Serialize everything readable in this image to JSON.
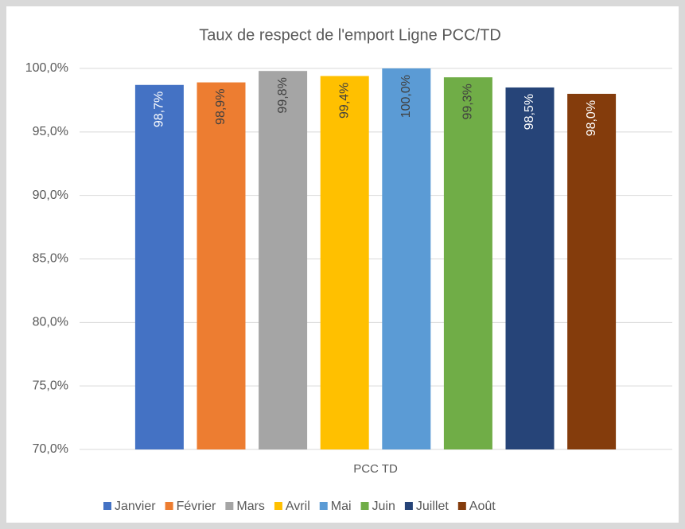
{
  "chart_data": {
    "type": "bar",
    "title": "Taux de respect de l'emport Ligne PCC/TD",
    "categories": [
      "PCC TD"
    ],
    "series": [
      {
        "name": "Janvier",
        "color": "#4472c4",
        "values": [
          98.7
        ],
        "value_labels": [
          "98,7%"
        ]
      },
      {
        "name": "Février",
        "color": "#ed7d31",
        "values": [
          98.9
        ],
        "value_labels": [
          "98,9%"
        ]
      },
      {
        "name": "Mars",
        "color": "#a5a5a5",
        "values": [
          99.8
        ],
        "value_labels": [
          "99,8%"
        ]
      },
      {
        "name": "Avril",
        "color": "#ffc000",
        "values": [
          99.4
        ],
        "value_labels": [
          "99,4%"
        ]
      },
      {
        "name": "Mai",
        "color": "#5b9bd5",
        "values": [
          100.0
        ],
        "value_labels": [
          "100,0%"
        ]
      },
      {
        "name": "Juin",
        "color": "#70ad47",
        "values": [
          99.3
        ],
        "value_labels": [
          "99,3%"
        ]
      },
      {
        "name": "Juillet",
        "color": "#264478",
        "values": [
          98.5
        ],
        "value_labels": [
          "98,5%"
        ]
      },
      {
        "name": "Août",
        "color": "#843c0c",
        "values": [
          98.0
        ],
        "value_labels": [
          "98,0%"
        ]
      }
    ],
    "ylim": [
      70,
      100
    ],
    "yticks": [
      {
        "value": 70,
        "label": "70,0%"
      },
      {
        "value": 75,
        "label": "75,0%"
      },
      {
        "value": 80,
        "label": "80,0%"
      },
      {
        "value": 85,
        "label": "85,0%"
      },
      {
        "value": 90,
        "label": "90,0%"
      },
      {
        "value": 95,
        "label": "95,0%"
      },
      {
        "value": 100,
        "label": "100,0%"
      }
    ],
    "grid": true,
    "legend": "bottom"
  }
}
